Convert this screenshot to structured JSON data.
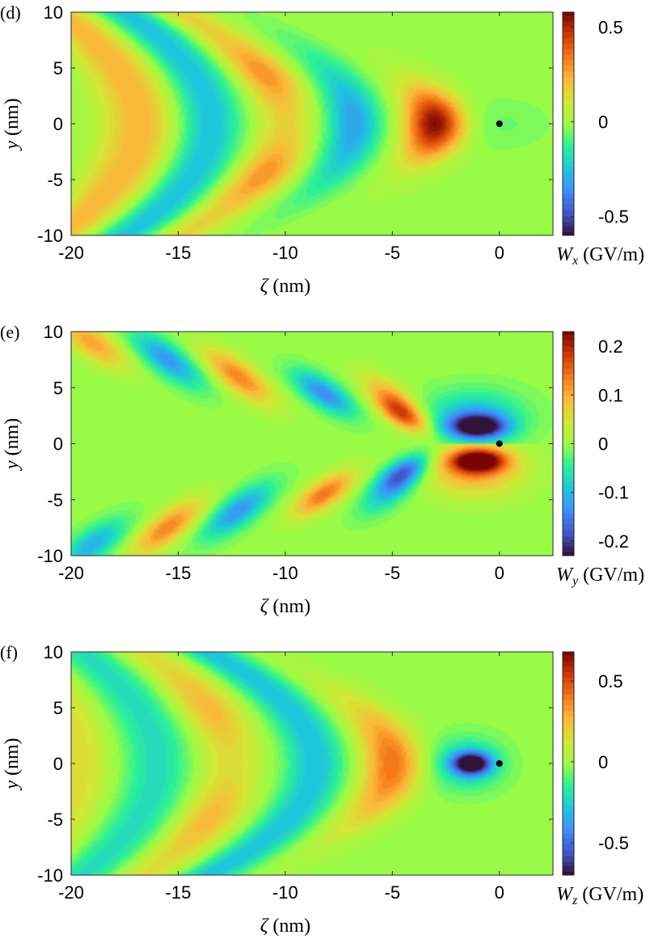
{
  "chart_data": [
    {
      "type": "heatmap",
      "panel_label": "(d)",
      "xlabel": "ζ (nm)",
      "ylabel": "y (nm)",
      "colorbar_label_symbol": "W",
      "colorbar_label_subscript": "x",
      "colorbar_label_unit": "(GV/m)",
      "xlim": [
        -20,
        2.5
      ],
      "ylim": [
        -10,
        10
      ],
      "xticks": [
        -20,
        -15,
        -10,
        -5,
        0
      ],
      "xtick_labels": [
        "-20",
        "-15",
        "-10",
        "-5",
        "0"
      ],
      "yticks": [
        10,
        5,
        0,
        -5,
        -10
      ],
      "ytick_labels": [
        "10",
        "5",
        "0",
        "-5",
        "-10"
      ],
      "clim": [
        -0.6,
        0.58
      ],
      "cticks": [
        0.5,
        0,
        -0.5
      ],
      "ctick_labels": [
        "0.5",
        "0",
        "-0.5"
      ],
      "colormap": "turbo",
      "marker_point": [
        0,
        0
      ],
      "field": "wx"
    },
    {
      "type": "heatmap",
      "panel_label": "(e)",
      "xlabel": "ζ (nm)",
      "ylabel": "y (nm)",
      "colorbar_label_symbol": "W",
      "colorbar_label_subscript": "y",
      "colorbar_label_unit": "(GV/m)",
      "xlim": [
        -20,
        2.5
      ],
      "ylim": [
        -10,
        10
      ],
      "xticks": [
        -20,
        -15,
        -10,
        -5,
        0
      ],
      "xtick_labels": [
        "-20",
        "-15",
        "-10",
        "-5",
        "0"
      ],
      "yticks": [
        10,
        5,
        0,
        -5,
        -10
      ],
      "ytick_labels": [
        "10",
        "5",
        "0",
        "-5",
        "-10"
      ],
      "clim": [
        -0.23,
        0.23
      ],
      "cticks": [
        0.2,
        0.1,
        0,
        -0.1,
        -0.2
      ],
      "ctick_labels": [
        "0.2",
        "0.1",
        "0",
        "-0.1",
        "-0.2"
      ],
      "colormap": "turbo",
      "marker_point": [
        0,
        0
      ],
      "field": "wy"
    },
    {
      "type": "heatmap",
      "panel_label": "(f)",
      "xlabel": "ζ (nm)",
      "ylabel": "y (nm)",
      "colorbar_label_symbol": "W",
      "colorbar_label_subscript": "z",
      "colorbar_label_unit": "(GV/m)",
      "xlim": [
        -20,
        2.5
      ],
      "ylim": [
        -10,
        10
      ],
      "xticks": [
        -20,
        -15,
        -10,
        -5,
        0
      ],
      "xtick_labels": [
        "-20",
        "-15",
        "-10",
        "-5",
        "0"
      ],
      "yticks": [
        10,
        5,
        0,
        -5,
        -10
      ],
      "ytick_labels": [
        "10",
        "5",
        "0",
        "-5",
        "-10"
      ],
      "clim": [
        -0.7,
        0.68
      ],
      "cticks": [
        0.5,
        0,
        -0.5
      ],
      "ctick_labels": [
        "0.5",
        "0",
        "-0.5"
      ],
      "colormap": "turbo",
      "marker_point": [
        0,
        0
      ],
      "field": "wz"
    }
  ]
}
